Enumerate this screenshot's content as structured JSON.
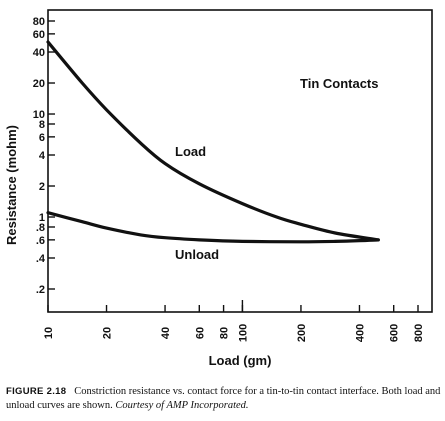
{
  "chart_data": {
    "type": "line",
    "x_scale": "log",
    "y_scale": "log",
    "xlabel": "Load (gm)",
    "ylabel": "Resistance (mohm)",
    "xlim": [
      10,
      900
    ],
    "ylim": [
      0.1,
      100
    ],
    "x_ticks": [
      10,
      20,
      40,
      60,
      80,
      100,
      200,
      400,
      600,
      800
    ],
    "x_tick_labels": [
      "10",
      "20",
      "40",
      "60",
      "80",
      "100",
      "200",
      "400",
      "600",
      "800"
    ],
    "y_ticks": [
      0.2,
      0.4,
      0.6,
      0.8,
      1,
      2,
      4,
      6,
      8,
      10,
      20,
      40,
      60,
      80
    ],
    "y_tick_labels": [
      ".2",
      ".4",
      ".6",
      ".8",
      "1",
      "2",
      "4",
      "6",
      "8",
      "10",
      "20",
      "40",
      "60",
      "80"
    ],
    "grid": false,
    "annotations": [
      "Tin Contacts",
      "Load",
      "Unload"
    ],
    "series": [
      {
        "name": "Load",
        "x": [
          10,
          15,
          20,
          30,
          40,
          60,
          100,
          150,
          200,
          300,
          500
        ],
        "y": [
          50,
          20,
          11,
          5.2,
          3.3,
          2.1,
          1.35,
          1.0,
          0.85,
          0.7,
          0.6
        ]
      },
      {
        "name": "Unload",
        "x": [
          10,
          15,
          20,
          30,
          40,
          60,
          100,
          200,
          300,
          400,
          500
        ],
        "y": [
          1.1,
          0.9,
          0.78,
          0.67,
          0.63,
          0.6,
          0.58,
          0.575,
          0.58,
          0.59,
          0.6
        ]
      }
    ]
  },
  "caption": {
    "label": "FIGURE 2.18",
    "text": "Constriction resistance vs. contact force for a tin-to-tin contact interface. Both load and unload curves are shown.",
    "courtesy": "Courtesy of AMP Incorporated."
  }
}
